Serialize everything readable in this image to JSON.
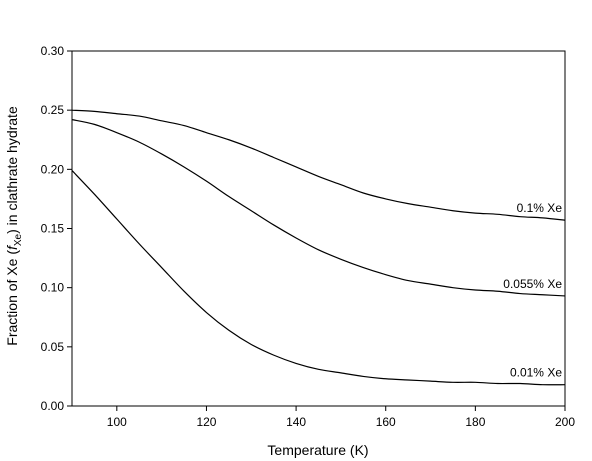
{
  "chart_data": {
    "type": "line",
    "title": "",
    "xlabel": "Temperature (K)",
    "ylabel": {
      "prefix": "Fraction of Xe (",
      "var": "f",
      "sub": "Xe",
      "suffix": ") in clathrate hydrate"
    },
    "xlim": [
      90,
      200
    ],
    "ylim": [
      0,
      0.3
    ],
    "xticks": [
      100,
      120,
      140,
      160,
      180,
      200
    ],
    "xtick_labels": [
      "100",
      "120",
      "140",
      "160",
      "180",
      "200"
    ],
    "yticks": [
      0,
      0.05,
      0.1,
      0.15,
      0.2,
      0.25,
      0.3
    ],
    "ytick_labels": [
      "0.00",
      "0.05",
      "0.10",
      "0.15",
      "0.20",
      "0.25",
      "0.30"
    ],
    "grid": false,
    "legend": "none",
    "series": [
      {
        "name": "0.1% Xe",
        "x": [
          90,
          95,
          100,
          105,
          110,
          115,
          120,
          125,
          130,
          135,
          140,
          145,
          150,
          155,
          160,
          165,
          170,
          175,
          180,
          185,
          190,
          195,
          200
        ],
        "y": [
          0.25,
          0.249,
          0.247,
          0.245,
          0.241,
          0.237,
          0.231,
          0.225,
          0.218,
          0.21,
          0.202,
          0.194,
          0.187,
          0.18,
          0.175,
          0.171,
          0.168,
          0.165,
          0.163,
          0.162,
          0.16,
          0.159,
          0.157
        ]
      },
      {
        "name": "0.055% Xe",
        "x": [
          90,
          95,
          100,
          105,
          110,
          115,
          120,
          125,
          130,
          135,
          140,
          145,
          150,
          155,
          160,
          165,
          170,
          175,
          180,
          185,
          190,
          195,
          200
        ],
        "y": [
          0.242,
          0.238,
          0.231,
          0.223,
          0.213,
          0.202,
          0.19,
          0.177,
          0.165,
          0.153,
          0.142,
          0.132,
          0.124,
          0.117,
          0.111,
          0.106,
          0.103,
          0.1,
          0.098,
          0.097,
          0.095,
          0.094,
          0.093
        ]
      },
      {
        "name": "0.01% Xe",
        "x": [
          90,
          95,
          100,
          105,
          110,
          115,
          120,
          125,
          130,
          135,
          140,
          145,
          150,
          155,
          160,
          165,
          170,
          175,
          180,
          185,
          190,
          195,
          200
        ],
        "y": [
          0.199,
          0.179,
          0.158,
          0.137,
          0.117,
          0.097,
          0.079,
          0.064,
          0.052,
          0.043,
          0.036,
          0.031,
          0.028,
          0.025,
          0.023,
          0.022,
          0.021,
          0.02,
          0.02,
          0.019,
          0.019,
          0.018,
          0.018
        ]
      }
    ]
  }
}
